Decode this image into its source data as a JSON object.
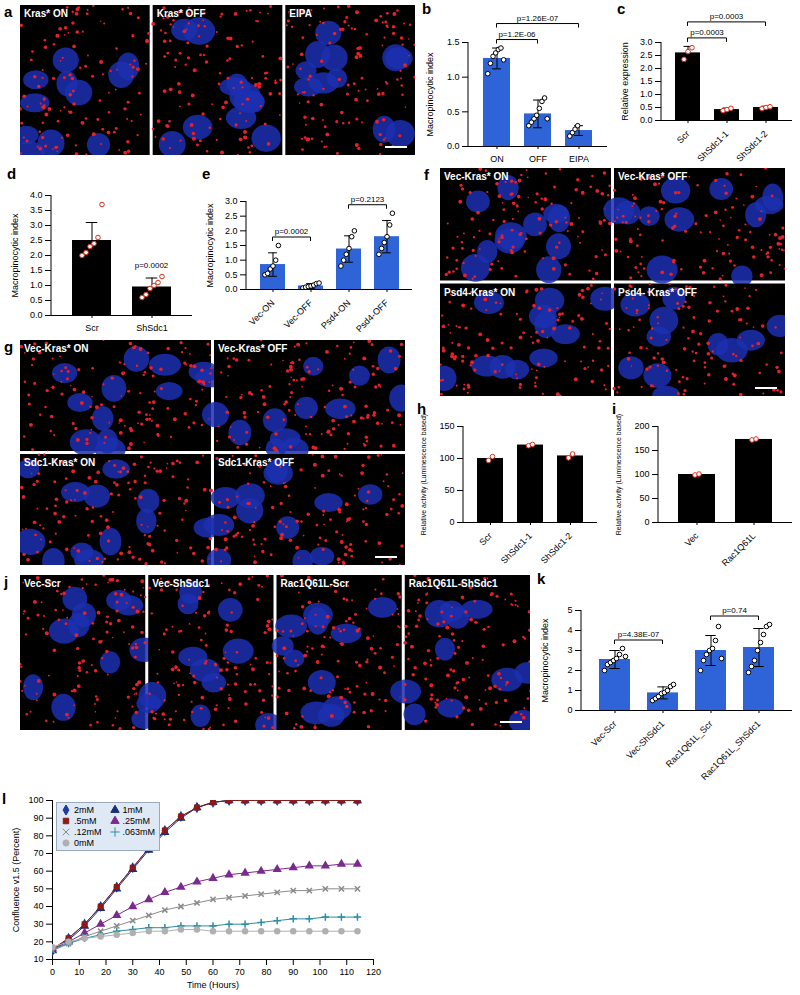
{
  "chart_data": [
    {
      "type": "bar",
      "panel_label": "b",
      "y_label": "Macropinocytic index",
      "categories": [
        "ON",
        "OFF",
        "EIPA"
      ],
      "values": [
        1.27,
        0.47,
        0.23
      ],
      "errors": [
        0.15,
        0.2,
        0.07
      ],
      "color": "#2e64d8",
      "points": {
        "color": "#000000",
        "values": [
          [
            1.05,
            1.2,
            1.3,
            1.35,
            1.4,
            1.42,
            1.25
          ],
          [
            0.3,
            0.35,
            0.4,
            0.45,
            0.55,
            0.65,
            0.7,
            0.4
          ],
          [
            0.15,
            0.2,
            0.25,
            0.3
          ]
        ]
      },
      "ylim": [
        0,
        1.5
      ],
      "yticks": [
        {
          "value": 0,
          "label": "0.0"
        },
        {
          "value": 0.5,
          "label": "0.5"
        },
        {
          "value": 1,
          "label": "1.0"
        },
        {
          "value": 1.5,
          "label": "1.5"
        }
      ],
      "annotations": [
        {
          "text": "p=1.26E-07",
          "between": [
            "ON",
            "EIPA"
          ]
        },
        {
          "text": "p=1.2E-06",
          "between": [
            "ON",
            "OFF"
          ]
        }
      ]
    },
    {
      "type": "bar",
      "panel_label": "c",
      "y_label": "Relative expression",
      "categories": [
        "Scr",
        "ShSdc1-1",
        "ShSdc1-2"
      ],
      "values": [
        2.6,
        0.42,
        0.5
      ],
      "errors": [
        0.25,
        0.06,
        0.05
      ],
      "color": "#000000",
      "points": {
        "color": "#e0301e",
        "values": [
          [
            2.35,
            2.65,
            2.8
          ],
          [
            0.38,
            0.42,
            0.47
          ],
          [
            0.46,
            0.5,
            0.53
          ]
        ]
      },
      "ylim": [
        0,
        3
      ],
      "yticks": [
        {
          "value": 0,
          "label": "0.0"
        },
        {
          "value": 0.5,
          "label": "0.5"
        },
        {
          "value": 1,
          "label": "1.0"
        },
        {
          "value": 1.5,
          "label": "1.5"
        },
        {
          "value": 2,
          "label": "2.0"
        },
        {
          "value": 2.5,
          "label": "2.5"
        },
        {
          "value": 3,
          "label": "3.0"
        }
      ],
      "annotations": [
        {
          "text": "p=0.0003",
          "between": [
            "Scr",
            "ShSdc1-1"
          ]
        },
        {
          "text": "p=0.0003",
          "between": [
            "Scr",
            "ShSdc1-2"
          ]
        }
      ]
    },
    {
      "type": "bar",
      "panel_label": "d",
      "y_label": "Macropinocytic index",
      "categories": [
        "Scr",
        "ShSdc1"
      ],
      "values": [
        2.5,
        0.95
      ],
      "errors": [
        0.6,
        0.3
      ],
      "color": "#000000",
      "points": {
        "color": "#e0301e",
        "values": [
          [
            2.0,
            2.1,
            2.3,
            2.4,
            2.6,
            3.7
          ],
          [
            0.6,
            0.7,
            0.9,
            1.0,
            1.1,
            1.3
          ]
        ]
      },
      "ylim": [
        0,
        4
      ],
      "yticks": [
        {
          "value": 0,
          "label": "0.0"
        },
        {
          "value": 0.5,
          "label": "0.5"
        },
        {
          "value": 1,
          "label": "1.0"
        },
        {
          "value": 1.5,
          "label": "1.5"
        },
        {
          "value": 2,
          "label": "2.0"
        },
        {
          "value": 2.5,
          "label": "2.5"
        },
        {
          "value": 3,
          "label": "3.0"
        },
        {
          "value": 3.5,
          "label": "3.5"
        },
        {
          "value": 4,
          "label": "4.0"
        }
      ],
      "annotations": [
        {
          "text": "p=0.0002",
          "at": "ShSdc1"
        }
      ]
    },
    {
      "type": "bar",
      "panel_label": "e",
      "y_label": "Macropinocytic index",
      "categories": [
        "Vec-ON",
        "Vec-OFF",
        "Psd4-ON",
        "Psd4-OFF"
      ],
      "values": [
        0.85,
        0.12,
        1.38,
        1.8
      ],
      "errors": [
        0.4,
        0.08,
        0.45,
        0.55
      ],
      "color": "#2e64d8",
      "points": {
        "color": "#000000",
        "values": [
          [
            0.5,
            0.55,
            0.7,
            0.8,
            1.0,
            1.5
          ],
          [
            0.05,
            0.08,
            0.1,
            0.12,
            0.15,
            0.2,
            0.22
          ],
          [
            0.8,
            1.0,
            1.2,
            1.4,
            1.8,
            2.0
          ],
          [
            1.2,
            1.4,
            1.6,
            1.8,
            2.2,
            2.6
          ]
        ]
      },
      "ylim": [
        0,
        3
      ],
      "yticks": [
        {
          "value": 0,
          "label": "0.0"
        },
        {
          "value": 0.5,
          "label": "0.5"
        },
        {
          "value": 1,
          "label": "1.0"
        },
        {
          "value": 1.5,
          "label": "1.5"
        },
        {
          "value": 2,
          "label": "2.0"
        },
        {
          "value": 2.5,
          "label": "2.5"
        },
        {
          "value": 3,
          "label": "3.0"
        }
      ],
      "annotations": [
        {
          "text": "p=0.0002",
          "between": [
            "Vec-ON",
            "Vec-OFF"
          ]
        },
        {
          "text": "p=0.2123",
          "between": [
            "Psd4-ON",
            "Psd4-OFF"
          ]
        }
      ]
    },
    {
      "type": "bar",
      "panel_label": "h",
      "y_label": "Relative activity (Luminescence based)",
      "categories": [
        "Scr",
        "ShSdc1-1",
        "ShSdc1-2"
      ],
      "values": [
        100,
        121,
        104
      ],
      "color": "#000000",
      "points": {
        "color": "#e0301e",
        "values": [
          [
            97,
            103
          ],
          [
            120,
            122
          ],
          [
            101,
            107
          ]
        ]
      },
      "ylim": [
        0,
        150
      ],
      "yticks": [
        0,
        50,
        100,
        150
      ]
    },
    {
      "type": "bar",
      "panel_label": "i",
      "y_label": "Relative activity (Luminescence based)",
      "categories": [
        "Vec",
        "Rac1Q61L"
      ],
      "values": [
        100,
        173
      ],
      "color": "#000000",
      "points": {
        "color": "#e0301e",
        "values": [
          [
            99,
            101
          ],
          [
            172,
            174
          ]
        ]
      },
      "ylim": [
        0,
        200
      ],
      "yticks": [
        0,
        50,
        100,
        150,
        200
      ]
    },
    {
      "type": "bar",
      "panel_label": "k",
      "y_label": "Macropinocytic index",
      "categories": [
        "Vec-Scr",
        "Vec-ShSdc1",
        "Rac1Q61L_Scr",
        "Rac1Q61L_ShSdc1"
      ],
      "values": [
        2.55,
        0.88,
        3.0,
        3.15
      ],
      "errors": [
        0.45,
        0.3,
        0.75,
        0.95
      ],
      "color": "#2e64d8",
      "points": {
        "color": "#000000",
        "values": [
          [
            2.0,
            2.3,
            2.4,
            2.5,
            2.6,
            2.8,
            3.1,
            2.7
          ],
          [
            0.5,
            0.6,
            0.7,
            0.85,
            0.9,
            1.0,
            1.2,
            1.3
          ],
          [
            2.0,
            2.5,
            2.8,
            3.0,
            3.1,
            3.5,
            4.2,
            2.6
          ],
          [
            1.9,
            2.2,
            2.5,
            3.0,
            3.4,
            3.8,
            4.2,
            4.3
          ]
        ]
      },
      "ylim": [
        0,
        5
      ],
      "yticks": [
        0,
        1,
        2,
        3,
        4,
        5
      ],
      "annotations": [
        {
          "text": "p=4.38E-07",
          "between": [
            "Vec-Scr",
            "Vec-ShSdc1"
          ]
        },
        {
          "text": "p=0.74",
          "between": [
            "Rac1Q61L_Scr",
            "Rac1Q61L_ShSdc1"
          ]
        }
      ]
    },
    {
      "type": "line",
      "panel_label": "l",
      "x_label": "Time (Hours)",
      "y_label": "Confluence v1.5 (Percent)",
      "x": [
        0,
        6,
        12,
        18,
        24,
        30,
        36,
        42,
        48,
        54,
        60,
        66,
        72,
        78,
        84,
        90,
        96,
        102,
        108,
        114
      ],
      "series": [
        {
          "name": "2mM",
          "color": "#1f3b9c",
          "marker": "diamond",
          "values": [
            15,
            22,
            30,
            40,
            51,
            62,
            73,
            83,
            91,
            96,
            99,
            100,
            100,
            100,
            100,
            100,
            100,
            100,
            100,
            100
          ]
        },
        {
          "name": "1mM",
          "color": "#1a2d7a",
          "marker": "triangle",
          "values": [
            15,
            21,
            29,
            39,
            50,
            61,
            72,
            82,
            90,
            96,
            99,
            100,
            100,
            100,
            100,
            100,
            100,
            100,
            100,
            100
          ]
        },
        {
          "name": ".5mM",
          "color": "#8b1a1a",
          "marker": "square",
          "values": [
            16,
            22,
            30,
            40,
            51,
            62,
            73,
            83,
            91,
            96,
            99,
            100,
            100,
            100,
            100,
            100,
            100,
            100,
            100,
            100
          ]
        },
        {
          "name": ".25mM",
          "color": "#7b2a8f",
          "marker": "triangle",
          "values": [
            16,
            20,
            25,
            30,
            35,
            40,
            44,
            48,
            51,
            54,
            56,
            58,
            59,
            60,
            61,
            62,
            63,
            63,
            64,
            64
          ]
        },
        {
          "name": ".12mM",
          "color": "#8a8a8a",
          "marker": "times",
          "values": [
            15,
            19,
            23,
            26,
            29,
            32,
            35,
            38,
            40,
            42,
            44,
            45,
            46,
            47,
            48,
            49,
            49,
            50,
            50,
            50
          ]
        },
        {
          "name": ".063mM",
          "color": "#2a8fa0",
          "marker": "plus",
          "values": [
            16,
            19,
            22,
            24,
            26,
            27,
            28,
            28,
            29,
            29,
            29,
            30,
            30,
            31,
            32,
            33,
            33,
            34,
            34,
            34
          ]
        },
        {
          "name": "0mM",
          "color": "#b0b0b0",
          "marker": "circle",
          "values": [
            17,
            20,
            22,
            23,
            24,
            25,
            26,
            26,
            27,
            27,
            26,
            26,
            26,
            26,
            26,
            26,
            26,
            26,
            26,
            26
          ]
        }
      ],
      "xlim": [
        0,
        120
      ],
      "xticks": [
        0,
        10,
        20,
        30,
        40,
        50,
        60,
        70,
        80,
        90,
        100,
        110,
        120
      ],
      "ylim": [
        10,
        100
      ],
      "yticks": [
        10,
        20,
        30,
        40,
        50,
        60,
        70,
        80,
        90,
        100
      ],
      "legend": "top-left"
    }
  ],
  "image_panels": [
    {
      "panel_label": "a",
      "tiles": [
        "Kras* ON",
        "Kras* OFF",
        "EIPA"
      ]
    },
    {
      "panel_label": "f",
      "tiles": [
        "Vec-Kras* ON",
        "Vec-Kras* OFF",
        "Psd4-Kras* ON",
        "Psd4- Kras* OFF"
      ]
    },
    {
      "panel_label": "g",
      "tiles": [
        "Vec-Kras* ON",
        "Vec-Kras* OFF",
        "Sdc1-Kras* ON",
        "Sdc1-Kras* OFF"
      ]
    },
    {
      "panel_label": "j",
      "tiles": [
        "Vec-Scr",
        "Vec-ShSdc1",
        "Rac1Q61L-Scr",
        "Rac1Q61L-ShSdc1"
      ]
    }
  ]
}
